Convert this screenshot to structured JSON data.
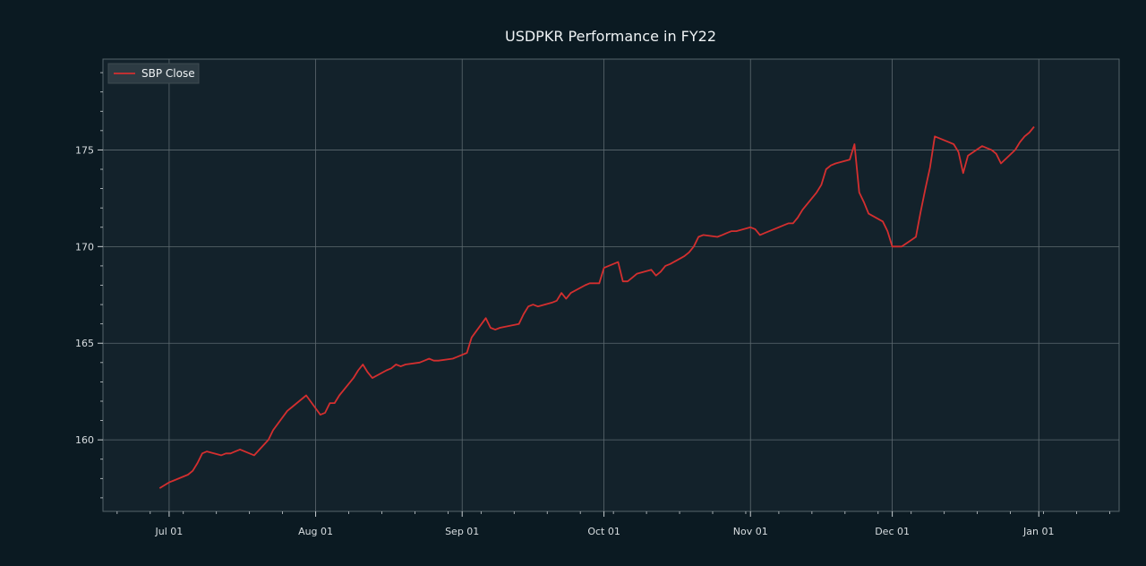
{
  "chart_data": {
    "type": "line",
    "title": "USDPKR Performance in FY22",
    "xlabel": "",
    "ylabel": "",
    "x_tick_labels": [
      "Jul 01",
      "Aug 01",
      "Sep 01",
      "Oct 01",
      "Nov 01",
      "Dec 01",
      "Jan 01"
    ],
    "y_tick_labels": [
      "160",
      "165",
      "170",
      "175"
    ],
    "ylim": [
      156.3,
      179.7
    ],
    "xlim": [
      "2021-06-17",
      "2022-01-18"
    ],
    "grid": true,
    "legend_position": "top-left",
    "series": [
      {
        "name": "SBP Close",
        "color": "#d32f2f",
        "points": [
          [
            "2021-06-29",
            157.5
          ],
          [
            "2021-07-01",
            157.8
          ],
          [
            "2021-07-02",
            157.9
          ],
          [
            "2021-07-05",
            158.2
          ],
          [
            "2021-07-06",
            158.4
          ],
          [
            "2021-07-07",
            158.8
          ],
          [
            "2021-07-08",
            159.3
          ],
          [
            "2021-07-09",
            159.4
          ],
          [
            "2021-07-12",
            159.2
          ],
          [
            "2021-07-13",
            159.3
          ],
          [
            "2021-07-14",
            159.3
          ],
          [
            "2021-07-15",
            159.4
          ],
          [
            "2021-07-16",
            159.5
          ],
          [
            "2021-07-19",
            159.2
          ],
          [
            "2021-07-22",
            160.0
          ],
          [
            "2021-07-23",
            160.5
          ],
          [
            "2021-07-26",
            161.5
          ],
          [
            "2021-07-27",
            161.7
          ],
          [
            "2021-07-30",
            162.3
          ],
          [
            "2021-08-02",
            161.3
          ],
          [
            "2021-08-03",
            161.4
          ],
          [
            "2021-08-04",
            161.9
          ],
          [
            "2021-08-05",
            161.9
          ],
          [
            "2021-08-06",
            162.3
          ],
          [
            "2021-08-09",
            163.2
          ],
          [
            "2021-08-10",
            163.6
          ],
          [
            "2021-08-11",
            163.9
          ],
          [
            "2021-08-12",
            163.5
          ],
          [
            "2021-08-13",
            163.2
          ],
          [
            "2021-08-16",
            163.6
          ],
          [
            "2021-08-17",
            163.7
          ],
          [
            "2021-08-18",
            163.9
          ],
          [
            "2021-08-19",
            163.8
          ],
          [
            "2021-08-20",
            163.9
          ],
          [
            "2021-08-23",
            164.0
          ],
          [
            "2021-08-24",
            164.1
          ],
          [
            "2021-08-25",
            164.2
          ],
          [
            "2021-08-26",
            164.1
          ],
          [
            "2021-08-27",
            164.1
          ],
          [
            "2021-08-30",
            164.2
          ],
          [
            "2021-09-01",
            164.4
          ],
          [
            "2021-09-02",
            164.5
          ],
          [
            "2021-09-03",
            165.3
          ],
          [
            "2021-09-06",
            166.3
          ],
          [
            "2021-09-07",
            165.8
          ],
          [
            "2021-09-08",
            165.7
          ],
          [
            "2021-09-09",
            165.8
          ],
          [
            "2021-09-13",
            166.0
          ],
          [
            "2021-09-14",
            166.5
          ],
          [
            "2021-09-15",
            166.9
          ],
          [
            "2021-09-16",
            167.0
          ],
          [
            "2021-09-17",
            166.9
          ],
          [
            "2021-09-20",
            167.1
          ],
          [
            "2021-09-21",
            167.2
          ],
          [
            "2021-09-22",
            167.6
          ],
          [
            "2021-09-23",
            167.3
          ],
          [
            "2021-09-24",
            167.6
          ],
          [
            "2021-09-27",
            168.0
          ],
          [
            "2021-09-28",
            168.1
          ],
          [
            "2021-09-29",
            168.1
          ],
          [
            "2021-09-30",
            168.1
          ],
          [
            "2021-10-01",
            168.9
          ],
          [
            "2021-10-04",
            169.2
          ],
          [
            "2021-10-05",
            168.2
          ],
          [
            "2021-10-06",
            168.2
          ],
          [
            "2021-10-07",
            168.4
          ],
          [
            "2021-10-08",
            168.6
          ],
          [
            "2021-10-11",
            168.8
          ],
          [
            "2021-10-12",
            168.5
          ],
          [
            "2021-10-13",
            168.7
          ],
          [
            "2021-10-14",
            169.0
          ],
          [
            "2021-10-15",
            169.1
          ],
          [
            "2021-10-18",
            169.5
          ],
          [
            "2021-10-19",
            169.7
          ],
          [
            "2021-10-20",
            170.0
          ],
          [
            "2021-10-21",
            170.5
          ],
          [
            "2021-10-22",
            170.6
          ],
          [
            "2021-10-25",
            170.5
          ],
          [
            "2021-10-26",
            170.6
          ],
          [
            "2021-10-27",
            170.7
          ],
          [
            "2021-10-28",
            170.8
          ],
          [
            "2021-10-29",
            170.8
          ],
          [
            "2021-11-01",
            171.0
          ],
          [
            "2021-11-02",
            170.9
          ],
          [
            "2021-11-03",
            170.6
          ],
          [
            "2021-11-04",
            170.7
          ],
          [
            "2021-11-05",
            170.8
          ],
          [
            "2021-11-08",
            171.1
          ],
          [
            "2021-11-09",
            171.2
          ],
          [
            "2021-11-10",
            171.2
          ],
          [
            "2021-11-11",
            171.5
          ],
          [
            "2021-11-12",
            171.9
          ],
          [
            "2021-11-15",
            172.8
          ],
          [
            "2021-11-16",
            173.2
          ],
          [
            "2021-11-17",
            174.0
          ],
          [
            "2021-11-18",
            174.2
          ],
          [
            "2021-11-19",
            174.3
          ],
          [
            "2021-11-22",
            174.5
          ],
          [
            "2021-11-23",
            175.3
          ],
          [
            "2021-11-24",
            172.8
          ],
          [
            "2021-11-25",
            172.3
          ],
          [
            "2021-11-26",
            171.7
          ],
          [
            "2021-11-29",
            171.3
          ],
          [
            "2021-11-30",
            170.8
          ],
          [
            "2021-12-01",
            170.0
          ],
          [
            "2021-12-02",
            170.0
          ],
          [
            "2021-12-03",
            170.0
          ],
          [
            "2021-12-06",
            170.5
          ],
          [
            "2021-12-07",
            171.8
          ],
          [
            "2021-12-08",
            173.0
          ],
          [
            "2021-12-09",
            174.1
          ],
          [
            "2021-12-10",
            175.7
          ],
          [
            "2021-12-13",
            175.4
          ],
          [
            "2021-12-14",
            175.3
          ],
          [
            "2021-12-15",
            174.9
          ],
          [
            "2021-12-16",
            173.8
          ],
          [
            "2021-12-17",
            174.7
          ],
          [
            "2021-12-20",
            175.2
          ],
          [
            "2021-12-21",
            175.1
          ],
          [
            "2021-12-22",
            175.0
          ],
          [
            "2021-12-23",
            174.8
          ],
          [
            "2021-12-24",
            174.3
          ],
          [
            "2021-12-27",
            175.0
          ],
          [
            "2021-12-28",
            175.4
          ],
          [
            "2021-12-29",
            175.7
          ],
          [
            "2021-12-30",
            175.9
          ],
          [
            "2021-12-31",
            176.2
          ]
        ]
      }
    ]
  },
  "figure": {
    "background": "#0b1a22",
    "plot_background": "#13222b"
  }
}
